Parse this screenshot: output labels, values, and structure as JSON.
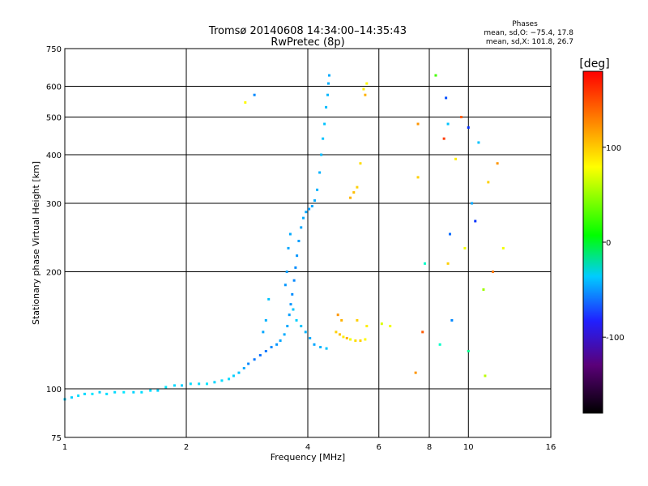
{
  "chart_data": {
    "type": "scatter",
    "title": "Tromsø 20140608 14:34:00–14:35:43",
    "subtitle": "RwPretec (8p)",
    "xlabel": "Frequency [MHz]",
    "ylabel": "Stationary phase Virtual Height [km]",
    "x_scale": "log",
    "y_scale": "log",
    "xlim": [
      1,
      16
    ],
    "ylim": [
      75,
      750
    ],
    "x_ticks": [
      1,
      2,
      4,
      6,
      8,
      10,
      16
    ],
    "y_ticks": [
      75,
      100,
      200,
      300,
      400,
      500,
      600,
      750
    ],
    "grid": true,
    "legend": {
      "heading": "Phases",
      "lines": [
        "mean, sd,O: −75.4, 17.8",
        "mean, sd,X: 101.8, 26.7"
      ]
    },
    "colorbar": {
      "label": "[deg]",
      "range": [
        -180,
        180
      ],
      "ticks": [
        100,
        0,
        -100
      ]
    },
    "series": [
      {
        "mode": "O",
        "points": [
          [
            1.0,
            94,
            -95
          ],
          [
            1.04,
            95,
            -95
          ],
          [
            1.08,
            96,
            -90
          ],
          [
            1.12,
            97,
            -92
          ],
          [
            1.17,
            97,
            -88
          ],
          [
            1.22,
            98,
            -95
          ],
          [
            1.27,
            97,
            -90
          ],
          [
            1.33,
            98,
            -92
          ],
          [
            1.4,
            98,
            -88
          ],
          [
            1.48,
            98,
            -94
          ],
          [
            1.55,
            98,
            -90
          ],
          [
            1.63,
            99,
            -92
          ],
          [
            1.7,
            99,
            -95
          ],
          [
            1.78,
            101,
            -88
          ],
          [
            1.87,
            102,
            -92
          ],
          [
            1.95,
            102,
            -95
          ],
          [
            2.05,
            103,
            -90
          ],
          [
            2.15,
            103,
            -92
          ],
          [
            2.25,
            103,
            -88
          ],
          [
            2.35,
            104,
            -94
          ],
          [
            2.45,
            105,
            -90
          ],
          [
            2.55,
            106,
            -92
          ],
          [
            2.62,
            108,
            -95
          ],
          [
            2.7,
            110,
            -100
          ],
          [
            2.78,
            113,
            -110
          ],
          [
            2.85,
            116,
            -120
          ],
          [
            2.95,
            119,
            -125
          ],
          [
            3.05,
            122,
            -128
          ],
          [
            3.15,
            125,
            -125
          ],
          [
            3.25,
            128,
            -120
          ],
          [
            3.35,
            130,
            -115
          ],
          [
            3.42,
            133,
            -110
          ],
          [
            3.5,
            138,
            -108
          ],
          [
            3.56,
            145,
            -110
          ],
          [
            3.6,
            155,
            -112
          ],
          [
            3.63,
            165,
            -115
          ],
          [
            3.66,
            175,
            -118
          ],
          [
            3.7,
            190,
            -120
          ],
          [
            3.73,
            205,
            -118
          ],
          [
            3.76,
            220,
            -115
          ],
          [
            3.8,
            240,
            -112
          ],
          [
            3.85,
            260,
            -110
          ],
          [
            3.9,
            275,
            -108
          ],
          [
            3.96,
            285,
            -110
          ],
          [
            4.03,
            290,
            -112
          ],
          [
            4.1,
            295,
            -110
          ],
          [
            4.16,
            305,
            -108
          ],
          [
            4.22,
            325,
            -105
          ],
          [
            4.28,
            360,
            -105
          ],
          [
            4.32,
            400,
            -102
          ],
          [
            4.36,
            440,
            -100
          ],
          [
            4.4,
            480,
            -100
          ],
          [
            4.44,
            530,
            -102
          ],
          [
            4.48,
            570,
            -104
          ],
          [
            4.5,
            610,
            -106
          ],
          [
            4.52,
            640,
            -108
          ],
          [
            3.52,
            185,
            -115
          ],
          [
            3.55,
            200,
            -112
          ],
          [
            3.58,
            230,
            -110
          ],
          [
            3.62,
            250,
            -108
          ],
          [
            3.68,
            160,
            -100
          ],
          [
            3.75,
            150,
            -95
          ],
          [
            3.85,
            145,
            -100
          ],
          [
            3.95,
            140,
            -105
          ],
          [
            4.05,
            135,
            -108
          ],
          [
            4.15,
            130,
            -110
          ],
          [
            4.3,
            128,
            -105
          ],
          [
            4.45,
            127,
            -100
          ],
          [
            3.2,
            170,
            -100
          ],
          [
            3.15,
            150,
            -105
          ],
          [
            3.1,
            140,
            -110
          ]
        ]
      },
      {
        "mode": "X",
        "points": [
          [
            4.7,
            140,
            110
          ],
          [
            4.8,
            138,
            115
          ],
          [
            4.9,
            136,
            100
          ],
          [
            5.0,
            135,
            120
          ],
          [
            5.1,
            134,
            90
          ],
          [
            5.25,
            133,
            105
          ],
          [
            5.4,
            133,
            110
          ],
          [
            5.55,
            134,
            95
          ],
          [
            4.75,
            155,
            130
          ],
          [
            4.85,
            150,
            120
          ],
          [
            5.3,
            150,
            110
          ],
          [
            5.6,
            145,
            100
          ],
          [
            6.1,
            147,
            80
          ],
          [
            6.4,
            145,
            90
          ],
          [
            5.5,
            590,
            100
          ],
          [
            5.6,
            610,
            95
          ],
          [
            5.55,
            570,
            120
          ],
          [
            5.3,
            330,
            110
          ],
          [
            5.2,
            320,
            115
          ],
          [
            5.1,
            310,
            120
          ],
          [
            5.4,
            380,
            105
          ],
          [
            2.8,
            545,
            95
          ],
          [
            2.95,
            570,
            -120
          ],
          [
            7.5,
            480,
            130
          ],
          [
            7.5,
            350,
            110
          ],
          [
            7.8,
            210,
            -60
          ],
          [
            7.7,
            140,
            150
          ],
          [
            7.4,
            110,
            130
          ],
          [
            8.3,
            640,
            30
          ],
          [
            8.5,
            130,
            -60
          ],
          [
            8.8,
            560,
            -140
          ],
          [
            8.9,
            480,
            -100
          ],
          [
            8.7,
            440,
            160
          ],
          [
            9.0,
            250,
            -130
          ],
          [
            8.9,
            210,
            110
          ],
          [
            9.1,
            150,
            -120
          ],
          [
            9.3,
            390,
            100
          ],
          [
            9.6,
            500,
            150
          ],
          [
            9.8,
            230,
            90
          ],
          [
            10.0,
            470,
            -150
          ],
          [
            10.0,
            125,
            -40
          ],
          [
            10.2,
            300,
            -110
          ],
          [
            10.4,
            270,
            -150
          ],
          [
            10.6,
            430,
            -100
          ],
          [
            10.9,
            180,
            60
          ],
          [
            11.2,
            340,
            110
          ],
          [
            11.5,
            200,
            140
          ],
          [
            11.8,
            380,
            130
          ],
          [
            12.2,
            230,
            90
          ],
          [
            11.0,
            108,
            70
          ]
        ]
      }
    ]
  }
}
